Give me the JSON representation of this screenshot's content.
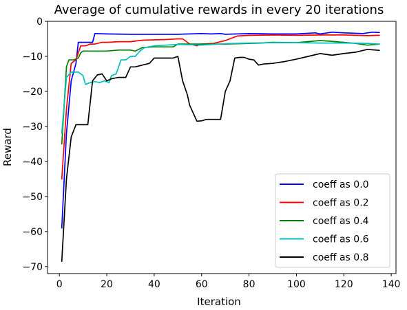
{
  "chart_data": {
    "type": "line",
    "title": "Average of cumulative rewards in every 20 iterations",
    "xlabel": "Iteration",
    "ylabel": "Reward",
    "xlim": [
      -5,
      142
    ],
    "ylim": [
      -72,
      0
    ],
    "xticks": [
      0,
      20,
      40,
      60,
      80,
      100,
      120,
      140
    ],
    "yticks": [
      0,
      -10,
      -20,
      -30,
      -40,
      -50,
      -60,
      -70
    ],
    "ytick_labels": [
      "0",
      "−10",
      "−20",
      "−30",
      "−40",
      "−50",
      "−60",
      "−70"
    ],
    "grid": false,
    "legend_position": "lower right",
    "series": [
      {
        "name": "coeff as 0.0",
        "color": "#0000ff",
        "x": [
          1,
          3,
          5,
          7,
          8,
          12,
          14,
          15,
          20,
          30,
          40,
          50,
          60,
          64,
          68,
          70,
          80,
          90,
          100,
          108,
          110,
          115,
          120,
          128,
          132,
          135
        ],
        "y": [
          -59,
          -32,
          -17,
          -12,
          -6,
          -6,
          -6,
          -3.5,
          -3.6,
          -3.7,
          -3.7,
          -3.7,
          -3.5,
          -3.6,
          -3.5,
          -3.7,
          -3.5,
          -3.6,
          -3.6,
          -3.3,
          -3.6,
          -3.1,
          -3.3,
          -3.5,
          -3.1,
          -3.2
        ]
      },
      {
        "name": "coeff as 0.2",
        "color": "#ff0000",
        "x": [
          1,
          3,
          5,
          7,
          9,
          11,
          13,
          15,
          18,
          20,
          25,
          30,
          35,
          40,
          45,
          50,
          52,
          55,
          58,
          60,
          65,
          70,
          75,
          80,
          90,
          100,
          110,
          120,
          130,
          135
        ],
        "y": [
          -45,
          -25,
          -12,
          -11,
          -7,
          -7,
          -6.5,
          -6.5,
          -6,
          -6,
          -5.8,
          -5.8,
          -5.4,
          -5.3,
          -5.2,
          -5,
          -5,
          -6.5,
          -7,
          -6.5,
          -6.3,
          -5.5,
          -4.2,
          -4,
          -3.9,
          -4,
          -3.9,
          -3.9,
          -4.1,
          -4
        ]
      },
      {
        "name": "coeff as 0.4",
        "color": "#008000",
        "x": [
          1,
          3,
          4,
          6,
          8,
          9,
          10,
          20,
          25,
          30,
          32,
          35,
          40,
          48,
          50,
          60,
          70,
          80,
          85,
          90,
          100,
          110,
          115,
          120,
          125,
          130,
          135
        ],
        "y": [
          -35,
          -13,
          -11,
          -11,
          -10.5,
          -9,
          -8.5,
          -8.5,
          -8.2,
          -8.2,
          -8.5,
          -7.5,
          -7.3,
          -7.3,
          -6.5,
          -6.5,
          -6.5,
          -6.3,
          -6.2,
          -6,
          -6.1,
          -5.5,
          -5.7,
          -6,
          -6.3,
          -6.8,
          -6.5
        ]
      },
      {
        "name": "coeff as 0.6",
        "color": "#00bfbf",
        "x": [
          1,
          3,
          5,
          6,
          8,
          10,
          11,
          13,
          15,
          17,
          19,
          21,
          22,
          24,
          26,
          28,
          30,
          32,
          34,
          36,
          40,
          50,
          60,
          70,
          80,
          90,
          100,
          110,
          120,
          130,
          135
        ],
        "y": [
          -32,
          -16,
          -14.5,
          -14.5,
          -14.5,
          -15.5,
          -18,
          -17.5,
          -17.2,
          -17.5,
          -17,
          -17.5,
          -15.5,
          -15,
          -11,
          -11,
          -10,
          -10,
          -8.5,
          -7.5,
          -7,
          -6.6,
          -6.8,
          -6.4,
          -6.2,
          -6.1,
          -6.1,
          -6.2,
          -6.2,
          -6.3,
          -6.5
        ]
      },
      {
        "name": "coeff as 0.8",
        "color": "#000000",
        "x": [
          1,
          3,
          5,
          7,
          9,
          12,
          14,
          16,
          18,
          20,
          22,
          25,
          28,
          30,
          32,
          35,
          38,
          40,
          45,
          48,
          50,
          52,
          54,
          55,
          58,
          60,
          62,
          65,
          68,
          70,
          72,
          74,
          76,
          78,
          80,
          82,
          84,
          86,
          90,
          95,
          100,
          105,
          110,
          115,
          120,
          125,
          130,
          135
        ],
        "y": [
          -68.5,
          -45,
          -33,
          -29.5,
          -29.5,
          -29.5,
          -17,
          -15.3,
          -15,
          -17,
          -16.4,
          -16,
          -16,
          -13,
          -13,
          -12.5,
          -12,
          -10.5,
          -10.5,
          -10.5,
          -10,
          -17,
          -21,
          -24,
          -28.5,
          -28.4,
          -28,
          -28,
          -28,
          -20,
          -17,
          -10.5,
          -10.3,
          -10.3,
          -10.8,
          -11,
          -12.5,
          -12.2,
          -12,
          -11.5,
          -10.8,
          -10,
          -9.2,
          -9.7,
          -9.2,
          -8.8,
          -8,
          -8.3
        ]
      }
    ]
  }
}
